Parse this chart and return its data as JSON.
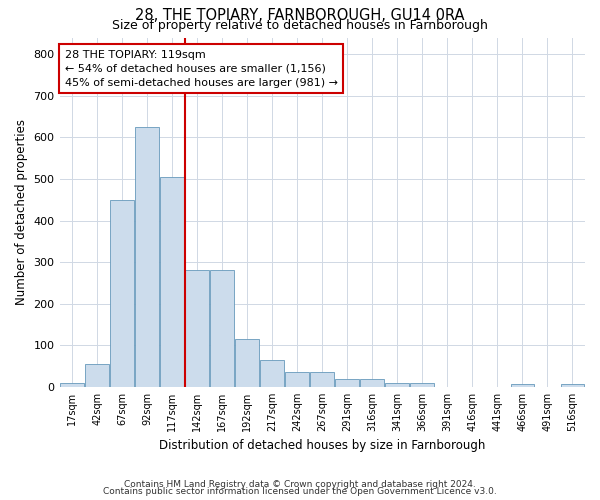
{
  "title1": "28, THE TOPIARY, FARNBOROUGH, GU14 0RA",
  "title2": "Size of property relative to detached houses in Farnborough",
  "xlabel": "Distribution of detached houses by size in Farnborough",
  "ylabel": "Number of detached properties",
  "bar_labels": [
    "17sqm",
    "42sqm",
    "67sqm",
    "92sqm",
    "117sqm",
    "142sqm",
    "167sqm",
    "192sqm",
    "217sqm",
    "242sqm",
    "267sqm",
    "291sqm",
    "316sqm",
    "341sqm",
    "366sqm",
    "391sqm",
    "416sqm",
    "441sqm",
    "466sqm",
    "491sqm",
    "516sqm"
  ],
  "bar_values": [
    10,
    55,
    450,
    625,
    505,
    280,
    280,
    115,
    65,
    37,
    37,
    20,
    20,
    10,
    10,
    0,
    0,
    0,
    7,
    0,
    7
  ],
  "bar_color": "#ccdcec",
  "bar_edge_color": "#6699bb",
  "annotation_text_line1": "28 THE TOPIARY: 119sqm",
  "annotation_text_line2": "← 54% of detached houses are smaller (1,156)",
  "annotation_text_line3": "45% of semi-detached houses are larger (981) →",
  "red_line_color": "#cc0000",
  "annotation_box_color": "#ffffff",
  "annotation_box_edge": "#cc0000",
  "footer1": "Contains HM Land Registry data © Crown copyright and database right 2024.",
  "footer2": "Contains public sector information licensed under the Open Government Licence v3.0.",
  "ylim_max": 840,
  "yticks": [
    0,
    100,
    200,
    300,
    400,
    500,
    600,
    700,
    800
  ],
  "grid_color": "#d0d8e4",
  "fig_width": 6.0,
  "fig_height": 5.0,
  "dpi": 100
}
